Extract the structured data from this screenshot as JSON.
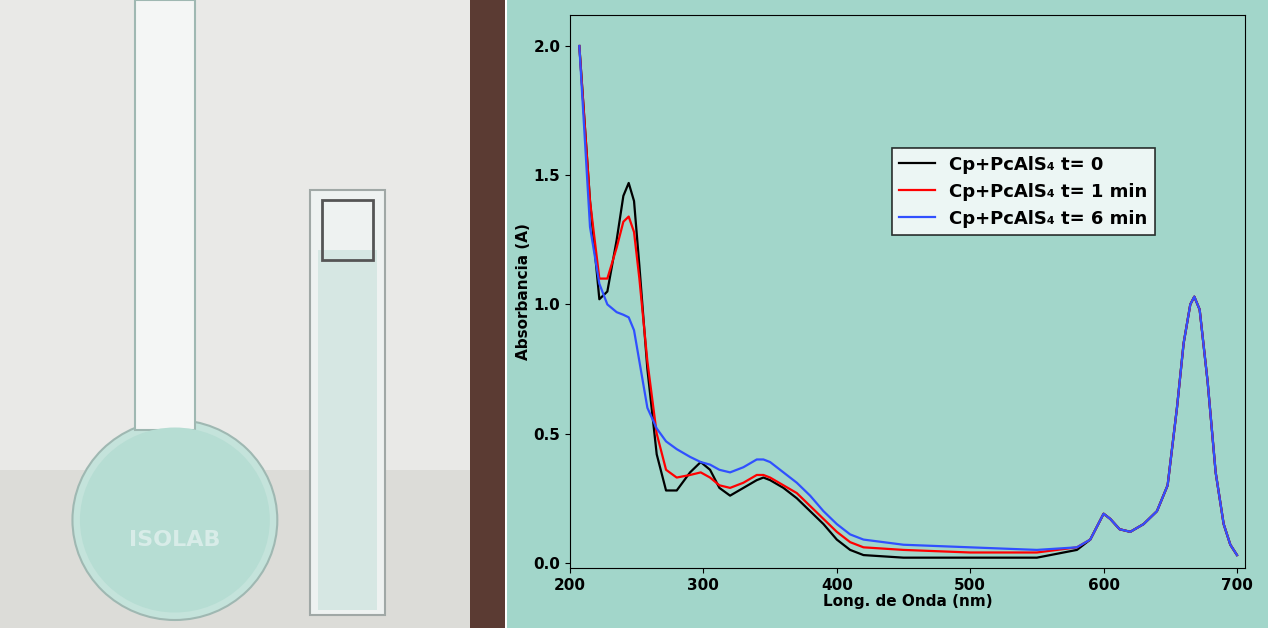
{
  "photo": {
    "flask_label": "ISOLAB"
  },
  "chart_data": {
    "type": "line",
    "xlabel": "Long. de Onda (nm)",
    "ylabel": "Absorbancia (A)",
    "x": [
      207,
      215,
      222,
      228,
      235,
      240,
      244,
      248,
      252,
      258,
      265,
      272,
      280,
      290,
      298,
      305,
      312,
      320,
      330,
      340,
      345,
      350,
      360,
      370,
      380,
      390,
      400,
      410,
      420,
      450,
      500,
      550,
      580,
      590,
      600,
      605,
      612,
      620,
      630,
      640,
      648,
      655,
      660,
      665,
      668,
      672,
      678,
      684,
      690,
      695,
      700
    ],
    "series": [
      {
        "name": "Cp+PcAlS₄ t= 0",
        "color": "#000000",
        "values": [
          2.0,
          1.4,
          1.02,
          1.05,
          1.25,
          1.42,
          1.47,
          1.4,
          1.15,
          0.75,
          0.42,
          0.28,
          0.28,
          0.35,
          0.39,
          0.36,
          0.29,
          0.26,
          0.29,
          0.32,
          0.33,
          0.32,
          0.29,
          0.25,
          0.2,
          0.15,
          0.09,
          0.05,
          0.03,
          0.02,
          0.02,
          0.02,
          0.05,
          0.09,
          0.19,
          0.17,
          0.13,
          0.12,
          0.15,
          0.2,
          0.3,
          0.6,
          0.85,
          1.0,
          1.03,
          0.98,
          0.7,
          0.35,
          0.15,
          0.07,
          0.03
        ]
      },
      {
        "name": "Cp+PcAlS₄ t= 1 min",
        "color": "#ff0000",
        "values": [
          2.0,
          1.4,
          1.1,
          1.1,
          1.22,
          1.32,
          1.34,
          1.28,
          1.1,
          0.78,
          0.5,
          0.36,
          0.33,
          0.34,
          0.35,
          0.33,
          0.3,
          0.29,
          0.31,
          0.34,
          0.34,
          0.33,
          0.3,
          0.27,
          0.22,
          0.17,
          0.12,
          0.08,
          0.06,
          0.05,
          0.04,
          0.04,
          0.06,
          0.09,
          0.19,
          0.17,
          0.13,
          0.12,
          0.15,
          0.2,
          0.3,
          0.6,
          0.85,
          1.0,
          1.03,
          0.98,
          0.7,
          0.35,
          0.15,
          0.07,
          0.03
        ]
      },
      {
        "name": "Cp+PcAlS₄ t= 6 min",
        "color": "#3050ff",
        "values": [
          2.0,
          1.3,
          1.08,
          1.0,
          0.97,
          0.96,
          0.95,
          0.9,
          0.78,
          0.6,
          0.52,
          0.47,
          0.44,
          0.41,
          0.39,
          0.38,
          0.36,
          0.35,
          0.37,
          0.4,
          0.4,
          0.39,
          0.35,
          0.31,
          0.26,
          0.2,
          0.15,
          0.11,
          0.09,
          0.07,
          0.06,
          0.05,
          0.06,
          0.09,
          0.19,
          0.17,
          0.13,
          0.12,
          0.15,
          0.2,
          0.3,
          0.6,
          0.85,
          1.0,
          1.03,
          0.98,
          0.7,
          0.35,
          0.15,
          0.07,
          0.03
        ]
      }
    ],
    "xlim": [
      200,
      706
    ],
    "xticks": [
      200,
      300,
      400,
      500,
      600,
      700
    ],
    "ylim": [
      -0.02,
      2.12
    ],
    "yticks": [
      {
        "value": 0.0,
        "label": "0.0"
      },
      {
        "value": 0.5,
        "label": "0.5"
      },
      {
        "value": 1.0,
        "label": "1.0"
      },
      {
        "value": 1.5,
        "label": "1.5"
      },
      {
        "value": 2.0,
        "label": "2.0"
      }
    ],
    "grid": false,
    "legend": "upper right"
  }
}
